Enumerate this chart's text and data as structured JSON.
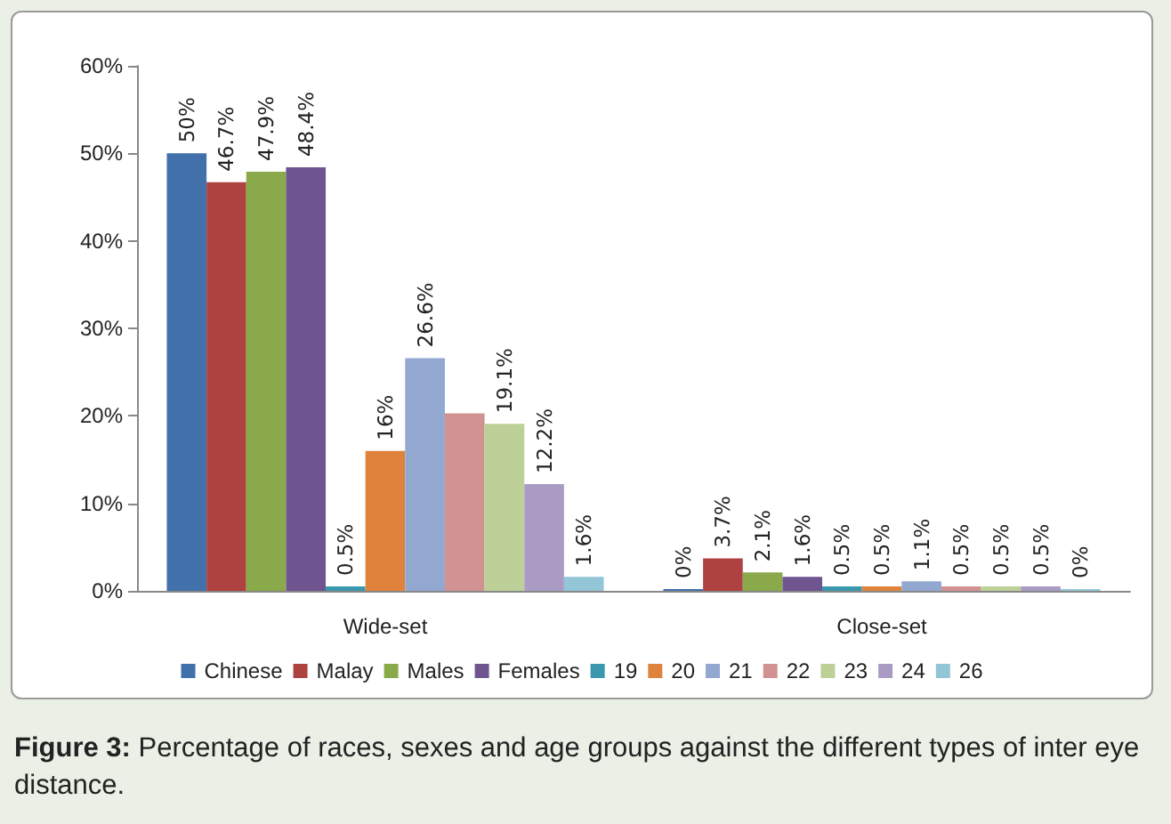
{
  "chart_data": {
    "type": "bar",
    "categories": [
      "Wide-set",
      "Close-set"
    ],
    "series": [
      {
        "name": "Chinese",
        "color": "#4170ab",
        "values": [
          50,
          0
        ],
        "value_labels": [
          "50%",
          "0%"
        ]
      },
      {
        "name": "Malay",
        "color": "#ae4240",
        "values": [
          46.7,
          3.7
        ],
        "value_labels": [
          "46.7%",
          "3.7%"
        ]
      },
      {
        "name": "Males",
        "color": "#89a94a",
        "values": [
          47.9,
          2.1
        ],
        "value_labels": [
          "47.9%",
          "2.1%"
        ]
      },
      {
        "name": "Females",
        "color": "#6f5590",
        "values": [
          48.4,
          1.6
        ],
        "value_labels": [
          "48.4%",
          "1.6%"
        ]
      },
      {
        "name": "19",
        "color": "#3b97ae",
        "values": [
          0.5,
          0.5
        ],
        "value_labels": [
          "0.5%",
          "0.5%"
        ]
      },
      {
        "name": "20",
        "color": "#de823c",
        "values": [
          16,
          0.5
        ],
        "value_labels": [
          "16%",
          "0.5%"
        ]
      },
      {
        "name": "21",
        "color": "#93a8d1",
        "values": [
          26.6,
          1.1
        ],
        "value_labels": [
          "26.6%",
          "1.1%"
        ]
      },
      {
        "name": "22",
        "color": "#d29291",
        "values": [
          20.3,
          0.5
        ],
        "value_labels": [
          null,
          "0.5%"
        ]
      },
      {
        "name": "23",
        "color": "#bcd098",
        "values": [
          19.1,
          0.5
        ],
        "value_labels": [
          "19.1%",
          "0.5%"
        ]
      },
      {
        "name": "24",
        "color": "#a99bc4",
        "values": [
          12.2,
          0.5
        ],
        "value_labels": [
          "12.2%",
          "0.5%"
        ]
      },
      {
        "name": "26",
        "color": "#92c6d6",
        "values": [
          1.6,
          0
        ],
        "value_labels": [
          "1.6%",
          "0%"
        ]
      }
    ],
    "ylim": [
      0,
      60
    ],
    "yticks": [
      {
        "value": 0,
        "label": "0%"
      },
      {
        "value": 10,
        "label": "10%"
      },
      {
        "value": 20,
        "label": "20%"
      },
      {
        "value": 30,
        "label": "30%"
      },
      {
        "value": 40,
        "label": "40%"
      },
      {
        "value": 50,
        "label": "50%"
      },
      {
        "value": 60,
        "label": "60%"
      }
    ],
    "legend": "bottom",
    "grid": false,
    "annotations": [
      "Figure 3:",
      "Percentage of races, sexes and age groups against the different types of inter eye distance."
    ]
  }
}
